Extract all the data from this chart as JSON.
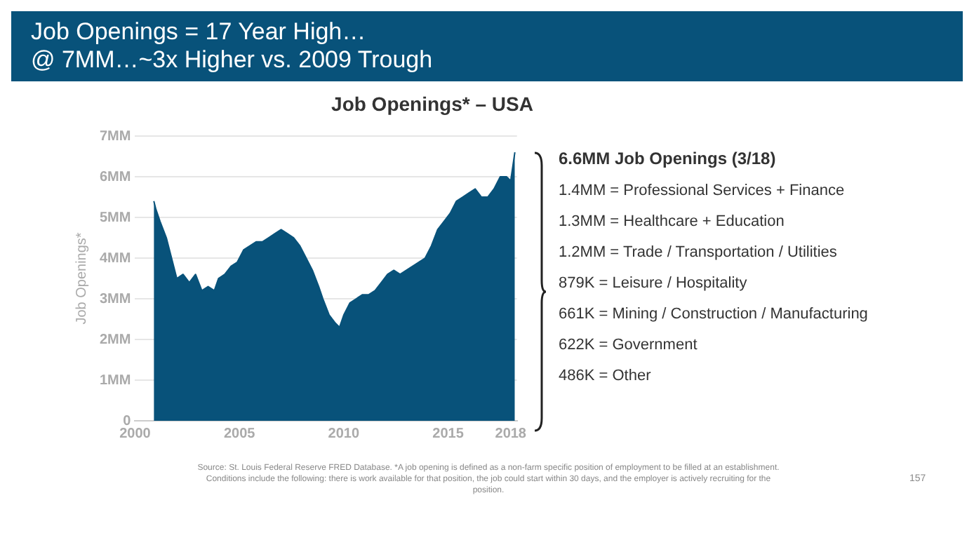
{
  "chart_data": {
    "type": "area",
    "title": "Job Openings = 17 Year High…\n@ 7MM…~3x Higher vs. 2009 Trough",
    "subtitle": "Job Openings* – USA",
    "ylabel": "Job Openings*",
    "x": [
      2000.9,
      2001.0,
      2001.2,
      2001.5,
      2001.8,
      2002.0,
      2002.3,
      2002.6,
      2002.9,
      2003.2,
      2003.5,
      2003.8,
      2004.0,
      2004.3,
      2004.6,
      2004.9,
      2005.2,
      2005.5,
      2005.8,
      2006.1,
      2006.4,
      2006.7,
      2007.0,
      2007.3,
      2007.6,
      2007.9,
      2008.2,
      2008.5,
      2008.8,
      2009.0,
      2009.3,
      2009.6,
      2009.8,
      2010.0,
      2010.3,
      2010.6,
      2010.9,
      2011.2,
      2011.5,
      2011.8,
      2012.1,
      2012.4,
      2012.7,
      2013.0,
      2013.3,
      2013.6,
      2013.9,
      2014.2,
      2014.5,
      2014.8,
      2015.1,
      2015.4,
      2015.7,
      2016.0,
      2016.3,
      2016.6,
      2016.9,
      2017.2,
      2017.5,
      2017.8,
      2018.0,
      2018.2
    ],
    "series": [
      {
        "color": "#08527a",
        "values": [
          5.4,
          5.2,
          4.9,
          4.5,
          3.9,
          3.5,
          3.6,
          3.4,
          3.6,
          3.2,
          3.3,
          3.2,
          3.5,
          3.6,
          3.8,
          3.9,
          4.2,
          4.3,
          4.4,
          4.4,
          4.5,
          4.6,
          4.7,
          4.6,
          4.5,
          4.3,
          4.0,
          3.7,
          3.3,
          3.0,
          2.6,
          2.4,
          2.3,
          2.6,
          2.9,
          3.0,
          3.1,
          3.1,
          3.2,
          3.4,
          3.6,
          3.7,
          3.6,
          3.7,
          3.8,
          3.9,
          4.0,
          4.3,
          4.7,
          4.9,
          5.1,
          5.4,
          5.5,
          5.6,
          5.7,
          5.5,
          5.5,
          5.7,
          6.0,
          6.0,
          5.9,
          6.6
        ]
      }
    ],
    "xlim": [
      2000,
      2018.3
    ],
    "xticks": [
      2000,
      2005,
      2010,
      2015,
      2018
    ],
    "ylim": [
      0,
      7
    ],
    "yticks": [
      0,
      {
        "value": 1,
        "label": "1MM"
      },
      {
        "value": 2,
        "label": "2MM"
      },
      {
        "value": 3,
        "label": "3MM"
      },
      {
        "value": 4,
        "label": "4MM"
      },
      {
        "value": 5,
        "label": "5MM"
      },
      {
        "value": 6,
        "label": "6MM"
      },
      {
        "value": 7,
        "label": "7MM"
      }
    ],
    "grid": "y",
    "legend": false,
    "annotations": [
      "6.6MM Job Openings (3/18)",
      "1.4MM = Professional Services + Finance",
      "1.3MM = Healthcare + Education",
      "1.2MM = Trade / Transportation / Utilities",
      "879K = Leisure / Hospitality",
      "661K = Mining / Construction / Manufacturing",
      "622K = Government",
      "486K = Other",
      "Source: St. Louis Federal Reserve FRED Database. *A job opening is defined as a non-farm specific position of employment to be filled at an establishment. Conditions include the following: there is work available for that position, the job could start within 30 days, and the employer is actively recruiting for the position.",
      "157"
    ]
  }
}
